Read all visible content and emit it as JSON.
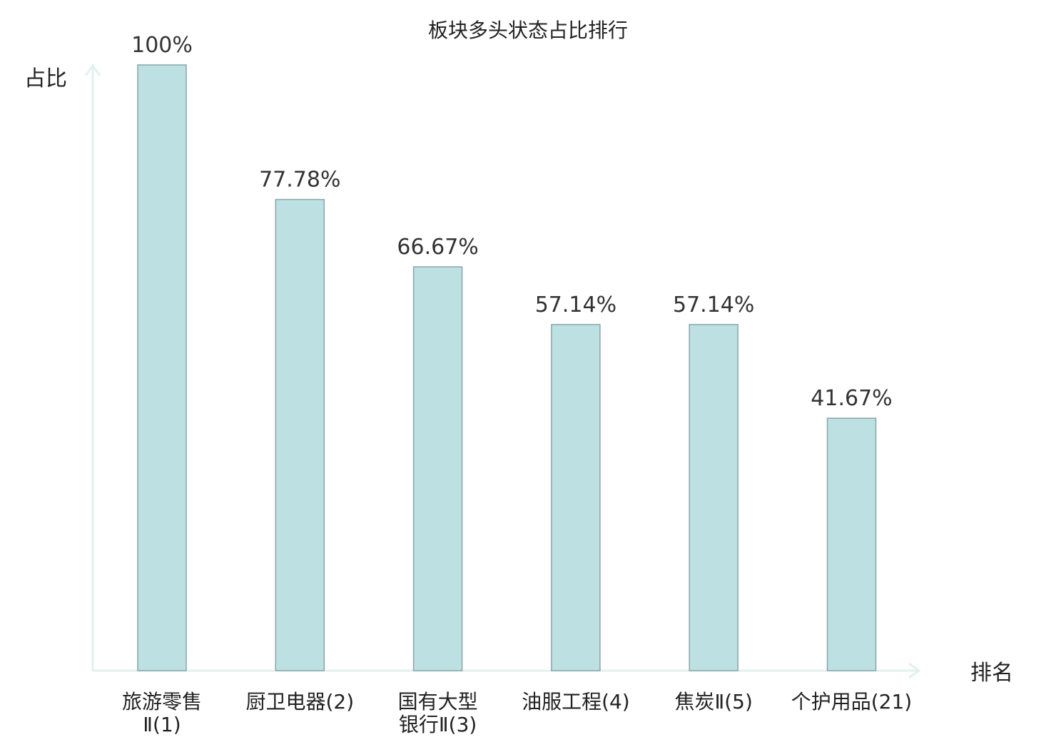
{
  "chart_data": {
    "type": "bar",
    "title": "板块多头状态占比排行",
    "ylabel": "占比",
    "xlabel": "排名",
    "ylim": [
      0,
      100
    ],
    "grid": false,
    "categories": [
      {
        "name": "旅游零售Ⅱ",
        "rank": "(1)",
        "lines": [
          "旅游零售",
          "Ⅱ(1)"
        ],
        "highlight": false
      },
      {
        "name": "厨卫电器",
        "rank": "(2)",
        "lines": [
          "厨卫电器(2)"
        ],
        "highlight": false
      },
      {
        "name": "国有大型银行Ⅱ",
        "rank": "(3)",
        "lines": [
          "国有大型",
          "银行Ⅱ(3)"
        ],
        "highlight": false
      },
      {
        "name": "油服工程",
        "rank": "(4)",
        "lines": [
          "油服工程(4)"
        ],
        "highlight": false
      },
      {
        "name": "焦炭Ⅱ",
        "rank": "(5)",
        "lines": [
          "焦炭Ⅱ(5)"
        ],
        "highlight": false
      },
      {
        "name": "个护用品",
        "rank": "(21)",
        "lines": [
          "个护用品(21)"
        ],
        "highlight": true
      }
    ],
    "values": [
      100,
      77.78,
      66.67,
      57.14,
      57.14,
      41.67
    ],
    "value_labels": [
      "100%",
      "77.78%",
      "66.67%",
      "57.14%",
      "57.14%",
      "41.67%"
    ]
  },
  "colors": {
    "bar_fill": "#bde0e3",
    "bar_stroke": "#8aa5a8",
    "axis": "#e0f2ef",
    "highlight_text": "#e02020",
    "text": "#222222",
    "value_text": "#333333"
  }
}
